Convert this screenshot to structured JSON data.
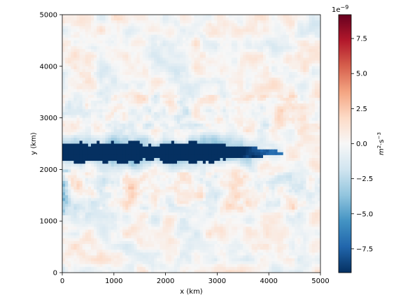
{
  "chart_data": {
    "type": "heatmap",
    "title": "",
    "xlabel": "x (km)",
    "ylabel": "y (km)",
    "xlim": [
      0,
      5000
    ],
    "ylim": [
      0,
      5000
    ],
    "xticks": [
      0,
      1000,
      2000,
      3000,
      4000,
      5000
    ],
    "yticks": [
      0,
      1000,
      2000,
      3000,
      4000,
      5000
    ],
    "colormap": "RdBu_r",
    "colorbar": {
      "label_base": "m",
      "label_exp1": "2",
      "label_sep": "·s",
      "label_exp2": "−3",
      "multiplier_base": "1e",
      "multiplier_exp": "−9",
      "range": [
        -9.2,
        9.2
      ],
      "ticks": [
        -7.5,
        -5.0,
        -2.5,
        0.0,
        2.5,
        5.0,
        7.5
      ],
      "tick_labels": [
        "−7.5",
        "−5.0",
        "−2.5",
        "0.0",
        "2.5",
        "5.0",
        "7.5"
      ]
    },
    "features": {
      "jet_center_y": 2330,
      "jet_halfwidth_y": 190,
      "jet_end_x": 3500,
      "jet_trail_end_x": 4500,
      "jet_min_value": -9.2,
      "left_edge_low_y": [
        1650,
        2000
      ],
      "left_edge_low_x_extent": 200
    },
    "colors": {
      "dark_blue": "#053061",
      "dark_red": "#67001f",
      "neutral": "#f7f7f7"
    }
  }
}
